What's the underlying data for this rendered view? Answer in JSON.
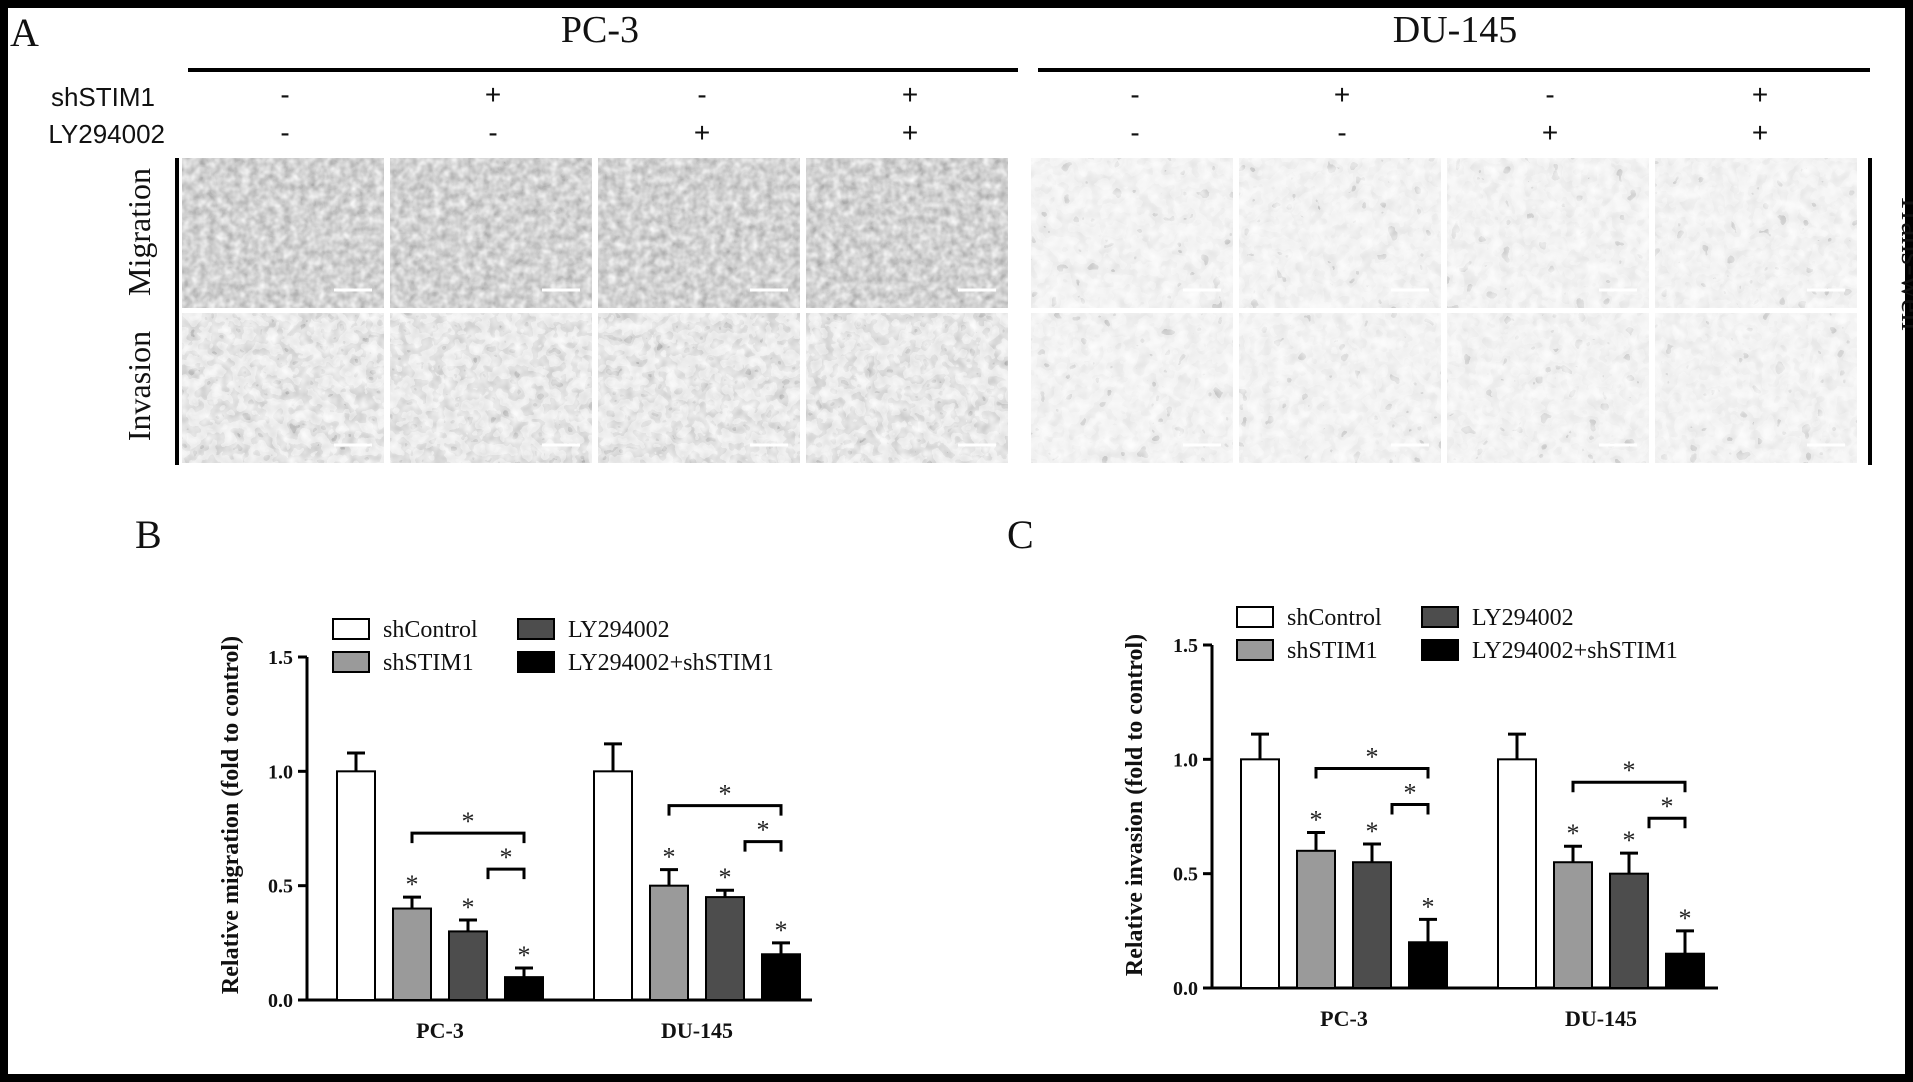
{
  "panel_labels": {
    "a": "A",
    "b": "B",
    "c": "C"
  },
  "panelA": {
    "groups": [
      "PC-3",
      "DU-145"
    ],
    "rows": [
      {
        "label": "shSTIM1",
        "signs": [
          "-",
          "+",
          "-",
          "+",
          "-",
          "+",
          "-",
          "+"
        ]
      },
      {
        "label": "LY294002",
        "signs": [
          "-",
          "-",
          "+",
          "+",
          "-",
          "-",
          "+",
          "+"
        ]
      }
    ],
    "image_rows": [
      "Migration",
      "Invasion"
    ],
    "side_label": "Trans-well"
  },
  "chart_data": [
    {
      "type": "bar",
      "panel": "B",
      "ylabel": "Relative migration (fold to control)",
      "categories": [
        "PC-3",
        "DU-145"
      ],
      "ylim": [
        0,
        1.5
      ],
      "yticks": [
        "0.0",
        "0.5",
        "1.0",
        "1.5"
      ],
      "series": [
        {
          "name": "shControl",
          "color": "#ffffff",
          "values": [
            1.0,
            1.0
          ],
          "errors": [
            0.08,
            0.12
          ],
          "stars": [
            false,
            false
          ]
        },
        {
          "name": "shSTIM1",
          "color": "#9a9a9a",
          "values": [
            0.4,
            0.5
          ],
          "errors": [
            0.05,
            0.07
          ],
          "stars": [
            true,
            true
          ]
        },
        {
          "name": "LY294002",
          "color": "#4d4d4d",
          "values": [
            0.3,
            0.45
          ],
          "errors": [
            0.05,
            0.03
          ],
          "stars": [
            true,
            true
          ]
        },
        {
          "name": "LY294002+shSTIM1",
          "color": "#000000",
          "values": [
            0.1,
            0.2
          ],
          "errors": [
            0.04,
            0.05
          ],
          "stars": [
            true,
            true
          ]
        }
      ],
      "brackets": [
        {
          "from": 1,
          "to": 3,
          "label": "*"
        },
        {
          "from": 2,
          "to": 3,
          "label": "*"
        }
      ]
    },
    {
      "type": "bar",
      "panel": "C",
      "ylabel": "Relative invasion (fold to control)",
      "categories": [
        "PC-3",
        "DU-145"
      ],
      "ylim": [
        0,
        1.5
      ],
      "yticks": [
        "0.0",
        "0.5",
        "1.0",
        "1.5"
      ],
      "series": [
        {
          "name": "shControl",
          "color": "#ffffff",
          "values": [
            1.0,
            1.0
          ],
          "errors": [
            0.11,
            0.11
          ],
          "stars": [
            false,
            false
          ]
        },
        {
          "name": "shSTIM1",
          "color": "#9a9a9a",
          "values": [
            0.6,
            0.55
          ],
          "errors": [
            0.08,
            0.07
          ],
          "stars": [
            true,
            true
          ]
        },
        {
          "name": "LY294002",
          "color": "#4d4d4d",
          "values": [
            0.55,
            0.5
          ],
          "errors": [
            0.08,
            0.09
          ],
          "stars": [
            true,
            true
          ]
        },
        {
          "name": "LY294002+shSTIM1",
          "color": "#000000",
          "values": [
            0.2,
            0.15
          ],
          "errors": [
            0.1,
            0.1
          ],
          "stars": [
            true,
            true
          ]
        }
      ],
      "brackets": [
        {
          "from": 1,
          "to": 3,
          "label": "*"
        },
        {
          "from": 2,
          "to": 3,
          "label": "*"
        }
      ]
    }
  ]
}
